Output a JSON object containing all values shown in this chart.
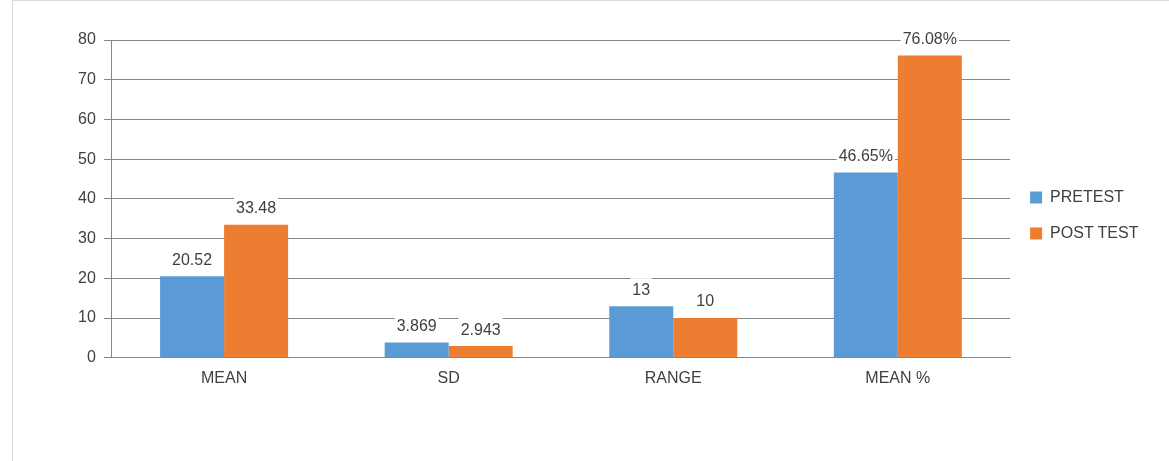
{
  "chart_data": {
    "type": "bar",
    "categories": [
      "MEAN",
      "SD",
      "RANGE",
      "MEAN %"
    ],
    "series": [
      {
        "name": "PRETEST",
        "color": "#5b9bd5",
        "values": [
          20.52,
          3.869,
          13,
          46.65
        ],
        "value_labels": [
          "20.52",
          "3.869",
          "13",
          "46.65%"
        ]
      },
      {
        "name": "POST TEST",
        "color": "#ed7d31",
        "values": [
          33.48,
          2.943,
          10,
          76.08
        ],
        "value_labels": [
          "33.48",
          "2.943",
          "10",
          "76.08%"
        ]
      }
    ],
    "ylim": [
      0,
      80
    ],
    "yticks": [
      0,
      10,
      20,
      30,
      40,
      50,
      60,
      70,
      80
    ],
    "grid": "y",
    "legend": "right"
  }
}
